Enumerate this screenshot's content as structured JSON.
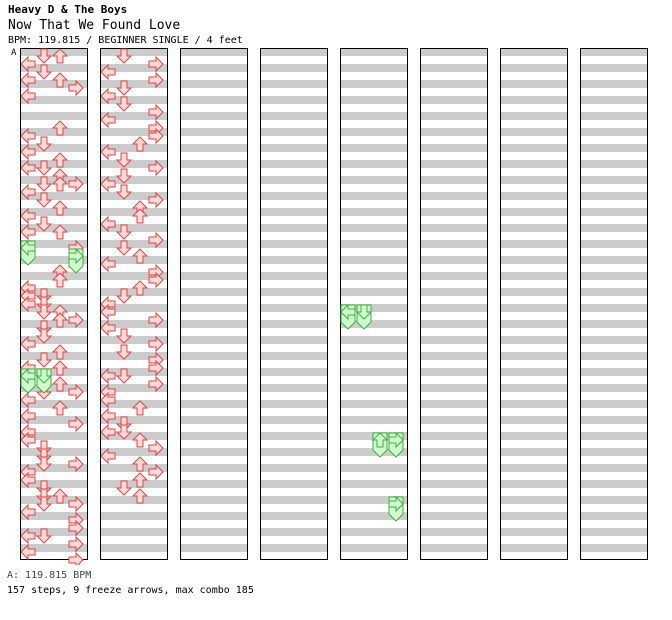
{
  "header": {
    "artist": "Heavy D & The Boys",
    "title": "Now That We Found Love",
    "meta": "BPM: 119.815 / BEGINNER SINGLE / 4 feet",
    "bpm_marker": "A"
  },
  "footer": {
    "bpm_legend": "A: 119.815 BPM",
    "stats": "157 steps, 9 freeze arrows, max combo 185"
  },
  "colors": {
    "arrow_fill": "#ffd8d8",
    "arrow_stroke": "#dd4444",
    "freeze_fill": "#ccffcc",
    "freeze_stroke": "#44aa44",
    "band": "#cccccc",
    "bpm_line": "#7799ff"
  },
  "chart": {
    "columns": 8,
    "measures_per_column": 8,
    "rows_per_measure": 8,
    "lanes": [
      "left",
      "down",
      "up",
      "right"
    ],
    "notes": [
      [
        0,
        0,
        1
      ],
      [
        0,
        0,
        2
      ],
      [
        0,
        1,
        0
      ],
      [
        0,
        2,
        1
      ],
      [
        0,
        3,
        2
      ],
      [
        0,
        3,
        0
      ],
      [
        0,
        4,
        3
      ],
      [
        0,
        5,
        0
      ],
      [
        1,
        1,
        2
      ],
      [
        1,
        2,
        0
      ],
      [
        1,
        3,
        1
      ],
      [
        1,
        4,
        0
      ],
      [
        1,
        5,
        2
      ],
      [
        1,
        6,
        0
      ],
      [
        1,
        6,
        1
      ],
      [
        1,
        7,
        2
      ],
      [
        2,
        0,
        1
      ],
      [
        2,
        0,
        2
      ],
      [
        2,
        0,
        3
      ],
      [
        2,
        1,
        0
      ],
      [
        2,
        2,
        1
      ],
      [
        2,
        3,
        2
      ],
      [
        2,
        4,
        0
      ],
      [
        2,
        5,
        1
      ],
      [
        2,
        6,
        0
      ],
      [
        2,
        6,
        2
      ],
      [
        3,
        0,
        3
      ],
      [
        3,
        2,
        3
      ],
      [
        3,
        3,
        2
      ],
      [
        3,
        4,
        2
      ],
      [
        3,
        5,
        0
      ],
      [
        3,
        6,
        0
      ],
      [
        3,
        6,
        1
      ],
      [
        3,
        7,
        0
      ],
      [
        3,
        7,
        1
      ],
      [
        4,
        0,
        1
      ],
      [
        4,
        0,
        2
      ],
      [
        4,
        1,
        3
      ],
      [
        4,
        1,
        2
      ],
      [
        4,
        2,
        1
      ],
      [
        4,
        3,
        1
      ],
      [
        4,
        4,
        0
      ],
      [
        4,
        5,
        2
      ],
      [
        4,
        6,
        1
      ],
      [
        4,
        7,
        0
      ],
      [
        4,
        7,
        2
      ],
      [
        5,
        0,
        0
      ],
      [
        5,
        1,
        2
      ],
      [
        5,
        2,
        1
      ],
      [
        5,
        2,
        3
      ],
      [
        5,
        3,
        0
      ],
      [
        5,
        4,
        2
      ],
      [
        5,
        5,
        0
      ],
      [
        5,
        6,
        3
      ],
      [
        5,
        7,
        0
      ],
      [
        6,
        0,
        0
      ],
      [
        6,
        1,
        1
      ],
      [
        6,
        2,
        1
      ],
      [
        6,
        3,
        1
      ],
      [
        6,
        3,
        3
      ],
      [
        6,
        4,
        0
      ],
      [
        6,
        5,
        0
      ],
      [
        6,
        6,
        1
      ],
      [
        6,
        7,
        1
      ],
      [
        6,
        7,
        2
      ],
      [
        7,
        0,
        1
      ],
      [
        7,
        0,
        3
      ],
      [
        7,
        1,
        0
      ],
      [
        7,
        2,
        3
      ],
      [
        7,
        3,
        3
      ],
      [
        7,
        4,
        0
      ],
      [
        7,
        4,
        1
      ],
      [
        7,
        5,
        3
      ],
      [
        7,
        6,
        0
      ],
      [
        7,
        7,
        3
      ],
      [
        8,
        0,
        1
      ],
      [
        8,
        1,
        3
      ],
      [
        8,
        2,
        0
      ],
      [
        8,
        3,
        3
      ],
      [
        8,
        4,
        1
      ],
      [
        8,
        5,
        0
      ],
      [
        8,
        6,
        1
      ],
      [
        8,
        7,
        3
      ],
      [
        9,
        0,
        0
      ],
      [
        9,
        1,
        3
      ],
      [
        9,
        2,
        3
      ],
      [
        9,
        3,
        2
      ],
      [
        9,
        4,
        0
      ],
      [
        9,
        5,
        1
      ],
      [
        9,
        6,
        3
      ],
      [
        9,
        7,
        1
      ],
      [
        10,
        0,
        0
      ],
      [
        10,
        1,
        1
      ],
      [
        10,
        2,
        3
      ],
      [
        10,
        3,
        2
      ],
      [
        10,
        4,
        2
      ],
      [
        10,
        5,
        0
      ],
      [
        10,
        6,
        1
      ],
      [
        10,
        7,
        3
      ],
      [
        11,
        0,
        1
      ],
      [
        11,
        1,
        2
      ],
      [
        11,
        2,
        0
      ],
      [
        11,
        3,
        3
      ],
      [
        11,
        4,
        3
      ],
      [
        11,
        5,
        2
      ],
      [
        11,
        6,
        1
      ],
      [
        11,
        7,
        0
      ],
      [
        12,
        0,
        0
      ],
      [
        12,
        1,
        3
      ],
      [
        12,
        2,
        0
      ],
      [
        12,
        3,
        1
      ],
      [
        12,
        4,
        3
      ],
      [
        12,
        5,
        1
      ],
      [
        12,
        6,
        3
      ],
      [
        12,
        7,
        3
      ],
      [
        13,
        0,
        0
      ],
      [
        13,
        0,
        1
      ],
      [
        13,
        1,
        3
      ],
      [
        13,
        2,
        0
      ],
      [
        13,
        3,
        0
      ],
      [
        13,
        4,
        2
      ],
      [
        13,
        5,
        0
      ],
      [
        13,
        6,
        1
      ],
      [
        13,
        7,
        0
      ],
      [
        13,
        7,
        1
      ],
      [
        14,
        0,
        2
      ],
      [
        14,
        1,
        3
      ],
      [
        14,
        2,
        0
      ],
      [
        14,
        3,
        2
      ],
      [
        14,
        4,
        3
      ],
      [
        14,
        5,
        2
      ],
      [
        14,
        6,
        1
      ],
      [
        14,
        7,
        2
      ]
    ],
    "freezes": [
      [
        3,
        0,
        0
      ],
      [
        3,
        1,
        3
      ],
      [
        5,
        0,
        0
      ],
      [
        5,
        0,
        1
      ],
      [
        36,
        0,
        0
      ],
      [
        36,
        0,
        1
      ],
      [
        38,
        0,
        2
      ],
      [
        38,
        0,
        3
      ],
      [
        39,
        0,
        3
      ]
    ]
  }
}
